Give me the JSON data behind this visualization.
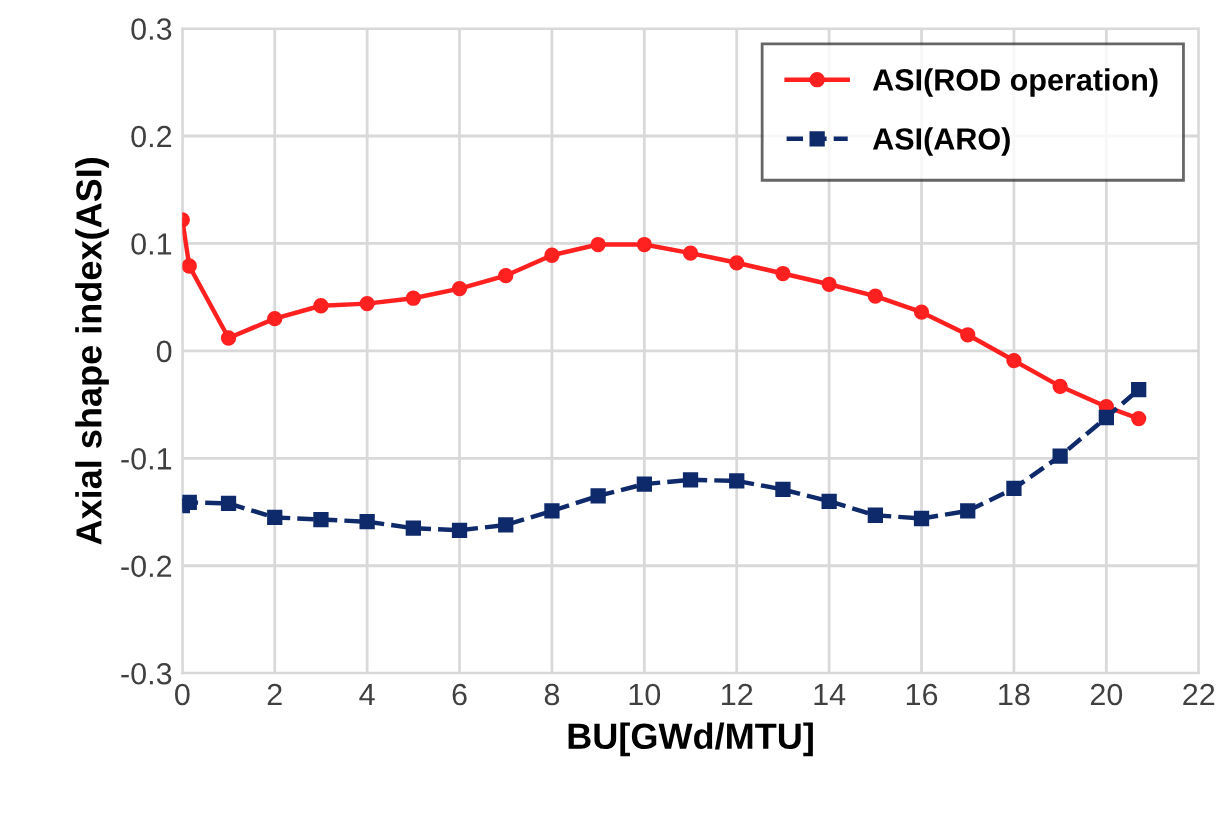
{
  "chart_data": {
    "type": "line",
    "xlabel": "BU[GWd/MTU]",
    "ylabel": "Axial shape index(ASI)",
    "xlim": [
      0,
      22
    ],
    "xticks": [
      0,
      2,
      4,
      6,
      8,
      10,
      12,
      14,
      16,
      18,
      20,
      22
    ],
    "ylim": [
      -0.3,
      0.3
    ],
    "yticks": [
      -0.3,
      -0.2,
      -0.1,
      0,
      0.1,
      0.2,
      0.3
    ],
    "grid": true,
    "legend": "top right",
    "series": [
      {
        "name": "ASI(ROD operation)",
        "color": "#ff2020",
        "marker": "circle",
        "line_style": "solid",
        "x": [
          0,
          0.15,
          1,
          2,
          3,
          4,
          5,
          6,
          7,
          8,
          9,
          10,
          11,
          12,
          13,
          14,
          15,
          16,
          17,
          18,
          19,
          20,
          20.7
        ],
        "values": [
          0.122,
          0.079,
          0.012,
          0.03,
          0.042,
          0.044,
          0.049,
          0.058,
          0.07,
          0.089,
          0.099,
          0.099,
          0.091,
          0.082,
          0.072,
          0.062,
          0.051,
          0.036,
          0.015,
          -0.009,
          -0.033,
          -0.052,
          -0.063
        ]
      },
      {
        "name": "ASI(ARO)",
        "color": "#0e2a6b",
        "marker": "square",
        "line_style": "dashed",
        "x": [
          0,
          0.15,
          1,
          2,
          3,
          4,
          5,
          6,
          7,
          8,
          9,
          10,
          11,
          12,
          13,
          14,
          15,
          16,
          17,
          18,
          19,
          20,
          20.7
        ],
        "values": [
          -0.144,
          -0.141,
          -0.142,
          -0.155,
          -0.157,
          -0.159,
          -0.165,
          -0.167,
          -0.162,
          -0.149,
          -0.135,
          -0.124,
          -0.12,
          -0.121,
          -0.129,
          -0.14,
          -0.153,
          -0.156,
          -0.149,
          -0.128,
          -0.098,
          -0.062,
          -0.036
        ]
      }
    ]
  }
}
